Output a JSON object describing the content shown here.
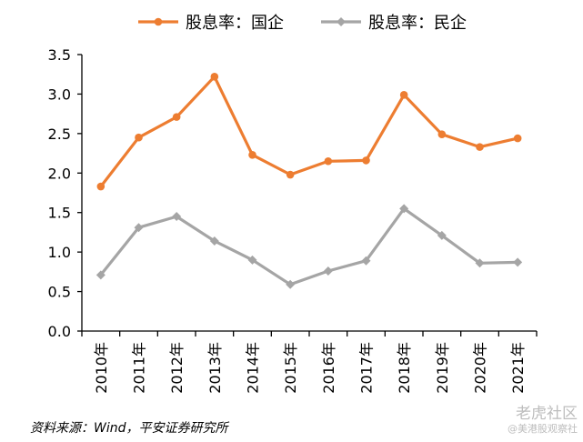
{
  "chart_data": {
    "type": "line",
    "title": "",
    "xlabel": "",
    "ylabel": "",
    "categories": [
      "2010年",
      "2011年",
      "2012年",
      "2013年",
      "2014年",
      "2015年",
      "2016年",
      "2017年",
      "2018年",
      "2019年",
      "2020年",
      "2021年"
    ],
    "ylim": [
      0,
      3.5
    ],
    "yticks": [
      "0.0",
      "0.5",
      "1.0",
      "1.5",
      "2.0",
      "2.5",
      "3.0",
      "3.5"
    ],
    "grid": false,
    "legend_position": "top-center",
    "series": [
      {
        "name": "股息率：国企",
        "color": "#ED7D31",
        "values": [
          1.83,
          2.45,
          2.71,
          3.22,
          2.23,
          1.98,
          2.15,
          2.16,
          2.99,
          2.49,
          2.33,
          2.44
        ]
      },
      {
        "name": "股息率：民企",
        "color": "#A5A5A5",
        "values": [
          0.71,
          1.31,
          1.45,
          1.14,
          0.9,
          0.59,
          0.76,
          0.89,
          1.55,
          1.21,
          0.86,
          0.87
        ]
      }
    ]
  },
  "source": "资料来源：Wind，平安证券研究所",
  "watermark": {
    "main": "老虎社区",
    "sub": "@美港股观察社"
  }
}
